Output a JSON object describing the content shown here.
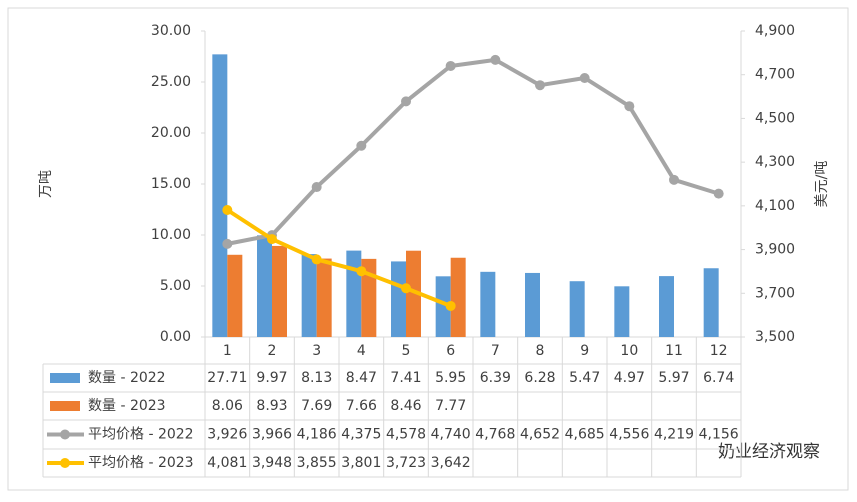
{
  "chart_data": {
    "type": "bar",
    "categories": [
      "1",
      "2",
      "3",
      "4",
      "5",
      "6",
      "7",
      "8",
      "9",
      "10",
      "11",
      "12"
    ],
    "y_label": "万吨",
    "y2_label": "美元/吨",
    "watermark": "奶业经济观察",
    "ylim": [
      0,
      30
    ],
    "yticks": [
      {
        "value": 0,
        "label": "0.00"
      },
      {
        "value": 5,
        "label": "5.00"
      },
      {
        "value": 10,
        "label": "10.00"
      },
      {
        "value": 15,
        "label": "15.00"
      },
      {
        "value": 20,
        "label": "20.00"
      },
      {
        "value": 25,
        "label": "25.00"
      },
      {
        "value": 30,
        "label": "30.00"
      }
    ],
    "y2lim": [
      3500,
      4900
    ],
    "y2ticks": [
      {
        "value": 3500,
        "label": "3,500"
      },
      {
        "value": 3700,
        "label": "3,700"
      },
      {
        "value": 3900,
        "label": "3,900"
      },
      {
        "value": 4100,
        "label": "4,100"
      },
      {
        "value": 4300,
        "label": "4,300"
      },
      {
        "value": 4500,
        "label": "4,500"
      },
      {
        "value": 4700,
        "label": "4,700"
      },
      {
        "value": 4900,
        "label": "4,900"
      }
    ],
    "series": [
      {
        "name": "数量 - 2022",
        "type": "bar",
        "color": "#5b9bd5",
        "values": [
          27.71,
          9.97,
          8.13,
          8.47,
          7.41,
          5.95,
          6.39,
          6.28,
          5.47,
          4.97,
          5.97,
          6.74
        ]
      },
      {
        "name": "数量 - 2023",
        "type": "bar",
        "color": "#ed7d31",
        "values": [
          8.06,
          8.93,
          7.69,
          7.66,
          8.46,
          7.77,
          null,
          null,
          null,
          null,
          null,
          null
        ]
      },
      {
        "name": "平均价格 - 2022",
        "type": "line",
        "axis": "y2",
        "color": "#a5a5a5",
        "values": [
          3926,
          3966,
          4186,
          4375,
          4578,
          4740,
          4768,
          4652,
          4685,
          4556,
          4219,
          4156
        ],
        "value_labels": [
          "3,926",
          "3,966",
          "4,186",
          "4,375",
          "4,578",
          "4,740",
          "4,768",
          "4,652",
          "4,685",
          "4,556",
          "4,219",
          "4,156"
        ]
      },
      {
        "name": "平均价格 - 2023",
        "type": "line",
        "axis": "y2",
        "color": "#ffc000",
        "values": [
          4081,
          3948,
          3855,
          3801,
          3723,
          3642,
          null,
          null,
          null,
          null,
          null,
          null
        ],
        "value_labels": [
          "4,081",
          "3,948",
          "3,855",
          "3,801",
          "3,723",
          "3,642",
          null,
          null,
          null,
          null,
          null,
          null
        ]
      }
    ]
  }
}
